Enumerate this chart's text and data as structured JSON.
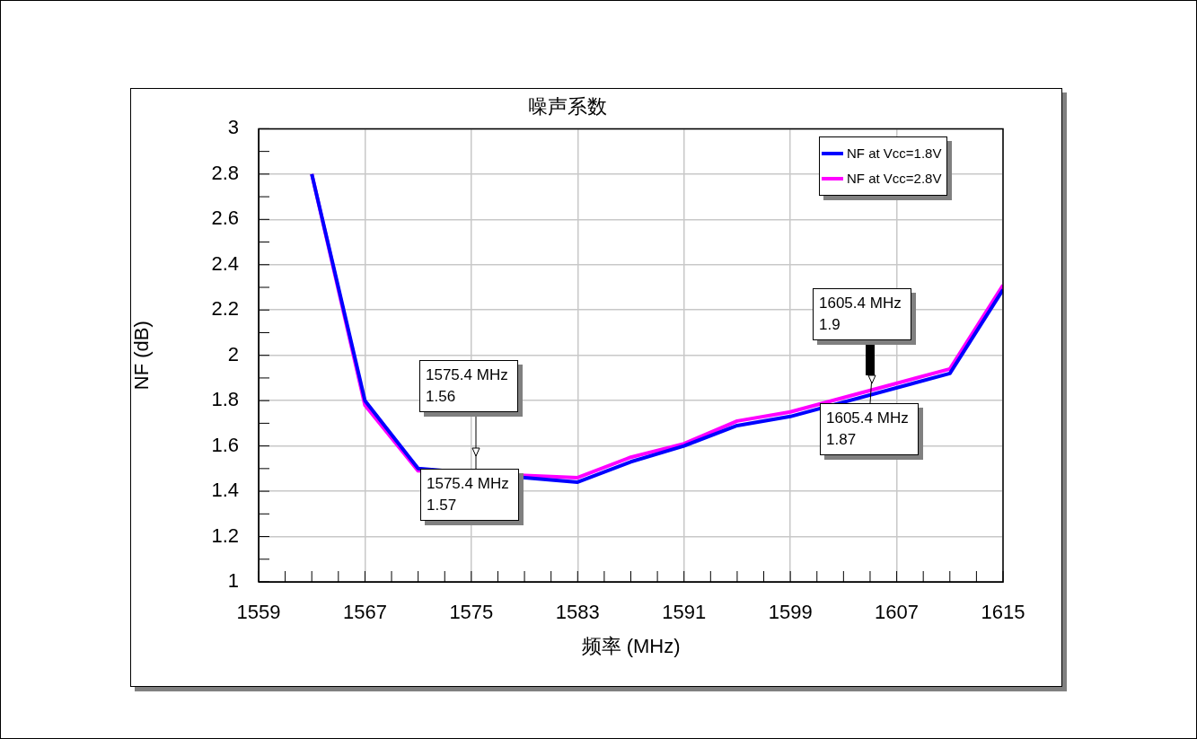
{
  "chart_data": {
    "type": "line",
    "title": "噪声系数",
    "xlabel": "频率 (MHz)",
    "ylabel": "NF (dB)",
    "x": [
      1563,
      1567,
      1571,
      1575,
      1579,
      1583,
      1587,
      1591,
      1595,
      1599,
      1603,
      1607,
      1611,
      1615
    ],
    "series": [
      {
        "name": "NF at Vcc=1.8V",
        "color": "#0000ff",
        "values": [
          2.8,
          1.8,
          1.5,
          null,
          null,
          1.44,
          1.53,
          1.6,
          1.69,
          1.73,
          null,
          null,
          1.92,
          2.29
        ]
      },
      {
        "name": "NF at Vcc=2.8V",
        "color": "#ff00ff",
        "values": [
          2.8,
          1.78,
          1.49,
          null,
          null,
          1.46,
          1.55,
          1.61,
          1.71,
          1.75,
          null,
          null,
          1.94,
          2.31
        ]
      }
    ],
    "xlim": [
      1559,
      1615
    ],
    "xticks": [
      1559,
      {
        "value": 1561,
        "label": null
      },
      {
        "value": 1563,
        "label": null
      },
      {
        "value": 1565,
        "label": null
      },
      1567,
      {
        "value": 1569,
        "label": null
      },
      {
        "value": 1571,
        "label": null
      },
      {
        "value": 1573,
        "label": null
      },
      1575,
      {
        "value": 1577,
        "label": null
      },
      {
        "value": 1579,
        "label": null
      },
      {
        "value": 1581,
        "label": null
      },
      1583,
      {
        "value": 1585,
        "label": null
      },
      {
        "value": 1587,
        "label": null
      },
      {
        "value": 1589,
        "label": null
      },
      1591,
      {
        "value": 1593,
        "label": null
      },
      {
        "value": 1595,
        "label": null
      },
      {
        "value": 1597,
        "label": null
      },
      1599,
      {
        "value": 1601,
        "label": null
      },
      {
        "value": 1603,
        "label": null
      },
      {
        "value": 1605,
        "label": null
      },
      1607,
      {
        "value": 1609,
        "label": null
      },
      {
        "value": 1611,
        "label": null
      },
      {
        "value": 1613,
        "label": null
      },
      1615
    ],
    "ylim": [
      1,
      3
    ],
    "yticks": [
      1,
      {
        "value": 1.1,
        "label": null
      },
      1.2,
      {
        "value": 1.3,
        "label": null
      },
      1.4,
      {
        "value": 1.5,
        "label": null
      },
      1.6,
      {
        "value": 1.7,
        "label": null
      },
      1.8,
      {
        "value": 1.9,
        "label": null
      },
      2,
      {
        "value": 2.1,
        "label": null
      },
      2.2,
      {
        "value": 2.3,
        "label": null
      },
      2.4,
      {
        "value": 2.5,
        "label": null
      },
      2.6,
      {
        "value": 2.7,
        "label": null
      },
      2.8,
      {
        "value": 2.9,
        "label": null
      },
      3
    ],
    "grid": true,
    "legend": "top right",
    "marker": "none",
    "line_style": "solid",
    "annotations": [
      "1575.4 MHz\n1.56",
      "1575.4 MHz\n1.57",
      "1605.4 MHz\n1.9",
      "1605.4 MHz\n1.87"
    ]
  }
}
